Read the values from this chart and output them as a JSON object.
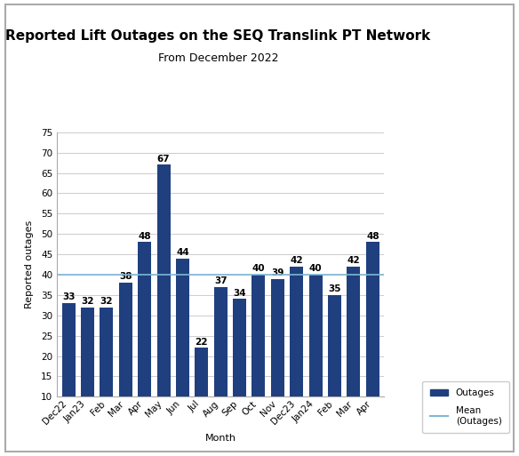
{
  "title": "Reported Lift Outages on the SEQ Translink PT Network",
  "subtitle": "From December 2022",
  "xlabel": "Month",
  "ylabel": "Reported outages",
  "categories": [
    "Dec22",
    "Jan23",
    "Feb",
    "Mar",
    "Apr",
    "May",
    "Jun",
    "Jul",
    "Aug",
    "Sep",
    "Oct",
    "Nov",
    "Dec23",
    "Jan24",
    "Feb",
    "Mar",
    "Apr"
  ],
  "values": [
    33,
    32,
    32,
    38,
    48,
    67,
    44,
    22,
    37,
    34,
    40,
    39,
    42,
    40,
    35,
    42,
    48
  ],
  "bar_color": "#1F3F7F",
  "mean_value": 40.0,
  "mean_color": "#7EB6D4",
  "ylim": [
    10,
    75
  ],
  "yticks": [
    10,
    15,
    20,
    25,
    30,
    35,
    40,
    45,
    50,
    55,
    60,
    65,
    70,
    75
  ],
  "background_color": "#FFFFFF",
  "title_fontsize": 11,
  "subtitle_fontsize": 9,
  "label_fontsize": 8,
  "tick_fontsize": 7.5,
  "bar_label_fontsize": 7.5,
  "border_color": "#AAAAAA"
}
